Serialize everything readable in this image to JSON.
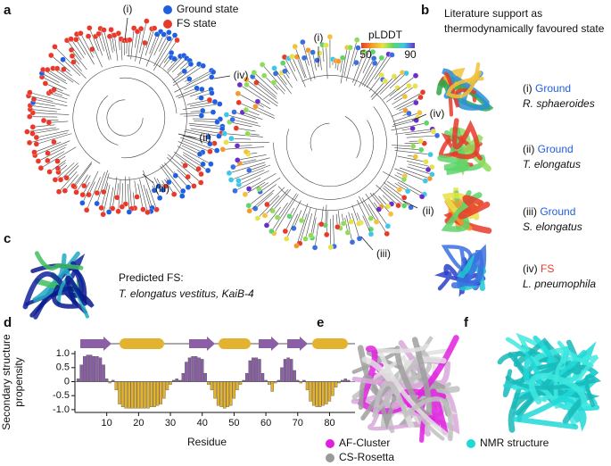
{
  "panels": {
    "a": {
      "label": "a",
      "legend": [
        "Ground state",
        "FS state"
      ],
      "tree1_labels": [
        "(i)",
        "(ii)",
        "(iii)",
        "(iv)"
      ],
      "tree2_labels": [
        "(i)",
        "(ii)",
        "(iii)",
        "(iv)"
      ],
      "colorbar": {
        "title": "pLDDT",
        "ticks": [
          50,
          90
        ]
      }
    },
    "b": {
      "label": "b",
      "heading": [
        "Literature support as",
        "thermodynamically favoured state"
      ],
      "entries": [
        {
          "index": "(i)",
          "state": "Ground",
          "organism": "R. sphaeroides"
        },
        {
          "index": "(ii)",
          "state": "Ground",
          "organism": "T. elongatus"
        },
        {
          "index": "(iii)",
          "state": "Ground",
          "organism": "S. elongatus"
        },
        {
          "index": "(iv)",
          "state": "FS",
          "organism": "L. pneumophila"
        }
      ]
    },
    "c": {
      "label": "c",
      "lines": [
        "Predicted FS:",
        "T. elongatus vestitus, KaiB-4"
      ]
    },
    "d": {
      "label": "d"
    },
    "e": {
      "label": "e",
      "legend": [
        "AF-Cluster",
        "CS-Rosetta"
      ]
    },
    "f": {
      "label": "f",
      "legend": [
        "NMR structure"
      ]
    }
  },
  "chart_data": {
    "type": "bar",
    "ylabel": [
      "Secondary structure",
      "propensity"
    ],
    "xlabel": "Residue",
    "x": [
      1,
      2,
      3,
      4,
      5,
      6,
      7,
      8,
      9,
      10,
      11,
      12,
      13,
      14,
      15,
      16,
      17,
      18,
      19,
      20,
      21,
      22,
      23,
      24,
      25,
      26,
      27,
      28,
      29,
      30,
      31,
      32,
      33,
      34,
      35,
      36,
      37,
      38,
      39,
      40,
      41,
      42,
      43,
      44,
      45,
      46,
      47,
      48,
      49,
      50,
      51,
      52,
      53,
      54,
      55,
      56,
      57,
      58,
      59,
      60,
      61,
      62,
      63,
      64,
      65,
      66,
      67,
      68,
      69,
      70,
      71,
      72,
      73,
      74,
      75,
      76,
      77,
      78,
      79,
      80,
      81,
      82,
      83,
      84,
      85,
      86
    ],
    "values": [
      0.1,
      0.6,
      0.9,
      0.95,
      0.95,
      0.9,
      0.9,
      0.85,
      0.6,
      0.1,
      -0.05,
      0.05,
      -0.3,
      -0.8,
      -0.9,
      -0.95,
      -0.95,
      -0.95,
      -0.95,
      -0.95,
      -0.95,
      -0.95,
      -0.95,
      -0.9,
      -0.9,
      -0.85,
      -0.8,
      -0.6,
      -0.3,
      -0.1,
      0.05,
      0.1,
      0.05,
      0.3,
      0.7,
      0.85,
      0.9,
      0.9,
      0.85,
      0.8,
      0.3,
      -0.1,
      -0.3,
      -0.6,
      -0.85,
      -0.9,
      -0.95,
      -0.9,
      -0.85,
      -0.6,
      -0.3,
      -0.1,
      0.05,
      0.3,
      0.75,
      0.85,
      0.85,
      0.8,
      0.3,
      0.05,
      -0.1,
      -0.35,
      -0.05,
      0.05,
      0.5,
      0.8,
      0.85,
      0.8,
      0.4,
      0.05,
      -0.05,
      0.05,
      -0.3,
      -0.7,
      -0.85,
      -0.9,
      -0.9,
      -0.85,
      -0.8,
      -0.7,
      -0.5,
      -0.2,
      -0.05,
      0.05,
      0.1,
      0.05
    ],
    "positive_color": "#8a5fa6",
    "negative_color": "#e3b22e",
    "xlim": [
      0,
      88
    ],
    "ylim": [
      -1.1,
      1.1
    ],
    "xticks": [
      10,
      20,
      30,
      40,
      50,
      60,
      70,
      80
    ],
    "yticks": [
      {
        "value": 1,
        "label": "1.0"
      },
      0.5,
      0,
      -0.5,
      {
        "value": -1,
        "label": "-1.0"
      }
    ]
  }
}
